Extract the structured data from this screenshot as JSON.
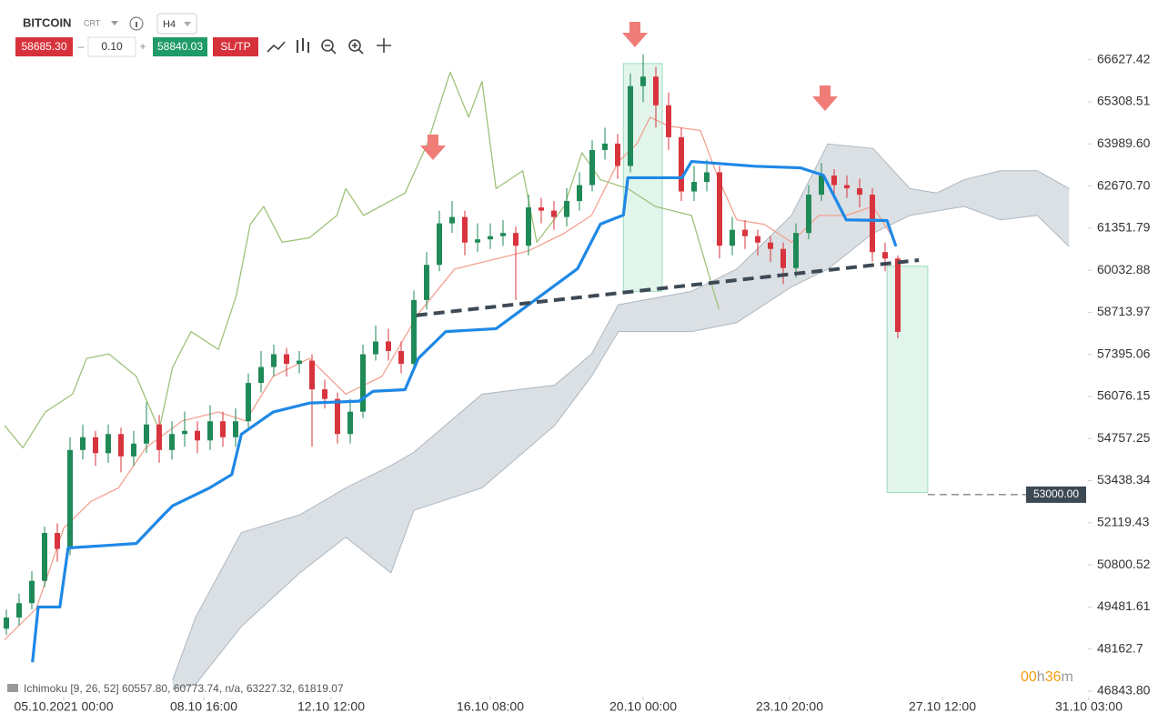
{
  "header": {
    "symbol": "BITCOIN",
    "type": "CRT",
    "timeframe": "H4",
    "sell": "58685.30",
    "volume": "0.10",
    "buy": "58840.03",
    "sltp": "SL/TP",
    "minus": "–",
    "plus": "+"
  },
  "legend": "Ichimoku [9, 26, 52] 60557.80, 60773.74, n/a, 63227.32, 61819.07",
  "timer": {
    "hours": "00",
    "h": "h",
    "minutes": "36",
    "m": "m"
  },
  "chart_data": {
    "type": "candlestick",
    "xlim": [
      0,
      172
    ],
    "ylim": [
      46700,
      67360
    ],
    "xticks": [
      {
        "value": 10,
        "label": "05.10.2021 00:00"
      },
      {
        "value": 32,
        "label": "08.10 16:00"
      },
      {
        "value": 52,
        "label": "12.10 12:00"
      },
      {
        "value": 77,
        "label": "16.10 08:00"
      },
      {
        "value": 101,
        "label": "20.10 00:00"
      },
      {
        "value": 124,
        "label": "23.10 20:00"
      },
      {
        "value": 148,
        "label": "27.10 12:00"
      },
      {
        "value": 171,
        "label": "31.10 03:00"
      }
    ],
    "yticks": [
      66627.42,
      65308.51,
      {
        "value": 63989.6,
        "label": "63989.60"
      },
      {
        "value": 62670.7,
        "label": "62670.70"
      },
      61351.79,
      60032.88,
      58713.97,
      57395.06,
      56076.15,
      54757.25,
      53438.34,
      52119.43,
      50800.52,
      49481.61,
      48162.7,
      {
        "value": 46843.8,
        "label": "46843.80"
      }
    ],
    "up_color": "#1f8a57",
    "down_color": "#d8343d",
    "candles": [
      [
        1,
        48800,
        49400,
        48600,
        49150
      ],
      [
        3,
        49150,
        49900,
        48900,
        49600
      ],
      [
        5,
        49600,
        50600,
        49400,
        50300
      ],
      [
        7,
        50300,
        52000,
        50100,
        51800
      ],
      [
        9,
        51800,
        52100,
        50900,
        51300
      ],
      [
        11,
        51300,
        54800,
        51100,
        54400
      ],
      [
        13,
        54400,
        55200,
        54100,
        54800
      ],
      [
        15,
        54800,
        55000,
        53900,
        54300
      ],
      [
        17,
        54300,
        55200,
        54000,
        54900
      ],
      [
        19,
        54900,
        55100,
        53700,
        54200
      ],
      [
        21,
        54200,
        55000,
        53900,
        54600
      ],
      [
        23,
        54600,
        55900,
        54300,
        55200
      ],
      [
        25,
        55200,
        55500,
        54000,
        54400
      ],
      [
        27,
        54400,
        55300,
        54100,
        54900
      ],
      [
        29,
        54900,
        55600,
        54500,
        55000
      ],
      [
        31,
        55000,
        55300,
        54300,
        54700
      ],
      [
        33,
        54700,
        55800,
        54400,
        55300
      ],
      [
        35,
        55300,
        55600,
        54500,
        54800
      ],
      [
        37,
        54800,
        55700,
        54500,
        55300
      ],
      [
        39,
        55300,
        56800,
        55100,
        56500
      ],
      [
        41,
        56500,
        57500,
        56200,
        57000
      ],
      [
        43,
        57000,
        57700,
        56700,
        57400
      ],
      [
        45,
        57400,
        57600,
        56700,
        57100
      ],
      [
        47,
        57100,
        57500,
        56800,
        57200
      ],
      [
        49,
        57200,
        57400,
        54500,
        56300
      ],
      [
        51,
        56300,
        56600,
        55700,
        56000
      ],
      [
        53,
        56000,
        56200,
        54600,
        54900
      ],
      [
        55,
        54900,
        56000,
        54600,
        55600
      ],
      [
        57,
        55600,
        57700,
        55400,
        57400
      ],
      [
        59,
        57400,
        58300,
        57200,
        57800
      ],
      [
        61,
        57800,
        58200,
        57200,
        57500
      ],
      [
        63,
        57500,
        57800,
        56800,
        57100
      ],
      [
        65,
        57100,
        59400,
        56900,
        59100
      ],
      [
        67,
        59100,
        60600,
        58800,
        60200
      ],
      [
        69,
        60200,
        61900,
        60000,
        61500
      ],
      [
        71,
        61500,
        62200,
        61200,
        61700
      ],
      [
        73,
        61700,
        61900,
        60500,
        60900
      ],
      [
        75,
        60900,
        61500,
        60600,
        61000
      ],
      [
        77,
        61000,
        61500,
        60700,
        61100
      ],
      [
        79,
        61100,
        61600,
        60800,
        61200
      ],
      [
        81,
        61200,
        61400,
        59100,
        60800
      ],
      [
        83,
        60800,
        62400,
        60500,
        62000
      ],
      [
        85,
        62000,
        62300,
        61500,
        61900
      ],
      [
        87,
        61900,
        62200,
        61300,
        61700
      ],
      [
        89,
        61700,
        62600,
        61400,
        62200
      ],
      [
        91,
        62200,
        63100,
        61900,
        62700
      ],
      [
        93,
        62700,
        64100,
        62500,
        63800
      ],
      [
        95,
        63800,
        64500,
        63500,
        64000
      ],
      [
        97,
        64000,
        64300,
        62900,
        63300
      ],
      [
        99,
        63300,
        66200,
        63100,
        65800
      ],
      [
        101,
        65800,
        66800,
        65300,
        66100
      ],
      [
        103,
        66100,
        66400,
        64500,
        65200
      ],
      [
        105,
        65200,
        65600,
        63800,
        64200
      ],
      [
        107,
        64200,
        64500,
        62200,
        62500
      ],
      [
        109,
        62500,
        63300,
        62200,
        62800
      ],
      [
        111,
        62800,
        63500,
        62500,
        63100
      ],
      [
        113,
        63100,
        63300,
        60400,
        60800
      ],
      [
        115,
        60800,
        61700,
        60500,
        61300
      ],
      [
        117,
        61300,
        61600,
        60700,
        61100
      ],
      [
        119,
        61100,
        61300,
        60500,
        60900
      ],
      [
        121,
        60900,
        61100,
        60300,
        60700
      ],
      [
        123,
        60700,
        60900,
        59600,
        60100
      ],
      [
        125,
        60100,
        61500,
        59800,
        61200
      ],
      [
        127,
        61200,
        62700,
        61000,
        62400
      ],
      [
        129,
        62400,
        63400,
        62200,
        63000
      ],
      [
        131,
        63000,
        63200,
        62400,
        62700
      ],
      [
        133,
        62700,
        63000,
        62300,
        62600
      ],
      [
        135,
        62600,
        62900,
        62000,
        62400
      ],
      [
        137,
        62400,
        62600,
        60300,
        60600
      ],
      [
        139,
        60600,
        60900,
        60000,
        60400
      ],
      [
        141,
        60400,
        60500,
        57900,
        58100
      ]
    ],
    "cloud": {
      "color": "#cfd5db",
      "stroke": "#aeb7c0",
      "x": [
        27.1,
        30.7,
        37.9,
        47.1,
        54.3,
        61.4,
        65,
        75.7,
        87.1,
        92.9,
        97.1,
        108.6,
        115.7,
        124.3,
        130,
        137.1,
        142.9,
        147.1,
        151.4,
        157.1,
        162.9,
        167.9
      ],
      "span_a": [
        47190,
        49150,
        51810,
        52370,
        53210,
        53910,
        54330,
        56150,
        56430,
        57410,
        58950,
        59370,
        60070,
        61750,
        63990,
        63850,
        62590,
        62450,
        62870,
        63150,
        63150,
        62590
      ],
      "span_b": [
        46910,
        47050,
        48870,
        50550,
        51670,
        50550,
        52510,
        53210,
        55170,
        56710,
        58110,
        58110,
        58390,
        59510,
        60070,
        61190,
        61750,
        61890,
        62030,
        61610,
        61750,
        60770
      ]
    },
    "lines": [
      {
        "color": "#f2a291",
        "width": 1.3,
        "x": [
          0.7,
          5.7,
          10,
          14.3,
          18.6,
          22.9,
          28.6,
          34.3,
          38.6,
          42.9,
          48.6,
          54.3,
          60,
          65.7,
          71.4,
          77.1,
          82.9,
          88.6,
          92.9,
          97.1,
          100,
          102.1,
          105,
          110,
          112.9,
          115.7,
          120,
          124.3,
          128.6,
          132.9,
          137.1,
          140.7
        ],
        "values": [
          48450,
          49430,
          51950,
          52790,
          53210,
          54470,
          55310,
          55590,
          55310,
          56710,
          57270,
          56150,
          56710,
          58670,
          60070,
          60350,
          60630,
          61190,
          61750,
          63430,
          63990,
          64830,
          64550,
          64410,
          62870,
          61610,
          61470,
          60910,
          61750,
          61750,
          62030,
          60910
        ]
      },
      {
        "color": "#9fc27a",
        "width": 1.3,
        "x": [
          0.7,
          3.6,
          7.1,
          11.4,
          13.6,
          17.1,
          21.4,
          25,
          27.1,
          30,
          34.3,
          37.1,
          39.3,
          41.4,
          44.3,
          48.6,
          52.9,
          54.3,
          57.1,
          63.6,
          67.1,
          70.7,
          73.6,
          75.7,
          77.9,
          82.1,
          84.3,
          88.6,
          91.4,
          94.3,
          98.6,
          102.9,
          108.6,
          112.9
        ],
        "values": [
          55170,
          54470,
          55590,
          56150,
          57270,
          57410,
          56710,
          55030,
          56990,
          58110,
          57550,
          59230,
          61470,
          62030,
          60910,
          61050,
          61750,
          62590,
          61750,
          62450,
          63990,
          66240,
          64830,
          65950,
          62590,
          63150,
          60910,
          62030,
          63710,
          62870,
          62590,
          62030,
          61750,
          58810
        ]
      },
      {
        "color": "#1e88e5",
        "width": 3.2,
        "x": [
          5.1,
          6,
          9.4,
          10.7,
          21.4,
          25.7,
          27.1,
          32.9,
          36.4,
          37.9,
          42.9,
          48.6,
          56.4,
          58.6,
          63.6,
          65.7,
          70,
          77.9,
          90.7,
          94.3,
          97.9,
          98.6,
          107.1,
          108.6,
          118.6,
          125.7,
          129.3,
          132.9,
          139.3,
          140.7
        ],
        "values": [
          47750,
          49480,
          49480,
          51330,
          51470,
          52370,
          52650,
          53210,
          53630,
          54890,
          55590,
          55870,
          55930,
          56240,
          56290,
          57270,
          58110,
          58200,
          60080,
          61480,
          61760,
          62930,
          62930,
          63440,
          63290,
          63240,
          63010,
          61610,
          61590,
          60780
        ]
      }
    ],
    "trend_line": {
      "color": "#3d4a55",
      "x": [
        65.4,
        144.3
      ],
      "values": [
        58620,
        60350
      ]
    },
    "boxes": [
      {
        "color": "#cdeedd",
        "x": [
          97.9,
          104
        ],
        "values": [
          66510,
          59370
        ]
      },
      {
        "color": "#cdeedd",
        "x": [
          139.3,
          145.7
        ],
        "values": [
          60160,
          53070
        ]
      }
    ],
    "target": {
      "value": 53000,
      "label": "53000.00"
    }
  }
}
